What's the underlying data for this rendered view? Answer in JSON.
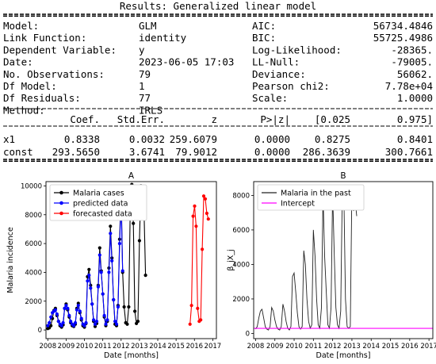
{
  "results": {
    "title": "Results: Generalized linear model",
    "left": [
      {
        "label": "Model:",
        "value": "GLM"
      },
      {
        "label": "Link Function:",
        "value": "identity"
      },
      {
        "label": "Dependent Variable:",
        "value": "y"
      },
      {
        "label": "Date:",
        "value": "2023-06-05 17:03"
      },
      {
        "label": "No. Observations:",
        "value": "79"
      },
      {
        "label": "Df Model:",
        "value": "1"
      },
      {
        "label": "Df Residuals:",
        "value": "77"
      },
      {
        "label": "Method:",
        "value": "IRLS"
      }
    ],
    "right": [
      {
        "label": "AIC:",
        "value": "56734.4846"
      },
      {
        "label": "BIC:",
        "value": "55725.4986"
      },
      {
        "label": "Log-Likelihood:",
        "value": "-28365."
      },
      {
        "label": "LL-Null:",
        "value": "-79005."
      },
      {
        "label": "Deviance:",
        "value": "56062."
      },
      {
        "label": "Pearson chi2:",
        "value": "7.78e+04"
      },
      {
        "label": "Scale:",
        "value": "1.0000"
      }
    ],
    "coef_headers": [
      "Coef.",
      "Std.Err.",
      "z",
      "P>|z|",
      "[0.025",
      "0.975]"
    ],
    "coef_rows": [
      {
        "name": "x1",
        "values": [
          "0.8338",
          "0.0032",
          "259.6079",
          "0.0000",
          "0.8275",
          "0.8401"
        ]
      },
      {
        "name": "const",
        "values": [
          "293.5650",
          "3.6741",
          "79.9012",
          "0.0000",
          "286.3639",
          "300.7661"
        ]
      }
    ]
  },
  "chart_data": [
    {
      "type": "line",
      "title": "A",
      "xlabel": "Date [months]",
      "ylabel": "Malaria incidence",
      "xlim": [
        2007.9,
        2017.2
      ],
      "ylim": [
        -600,
        10300
      ],
      "xticks": [
        "2008",
        "2009",
        "2010",
        "2011",
        "2012",
        "2013",
        "2014",
        "2015",
        "2016",
        "2017"
      ],
      "yticks": [
        "0",
        "2000",
        "4000",
        "6000",
        "8000",
        "10000"
      ],
      "legend_position": "top-left",
      "series": [
        {
          "name": "Malaria cases",
          "color": "#000000",
          "x_start": 2008.0,
          "values": [
            100,
            150,
            300,
            800,
            1350,
            1500,
            1000,
            600,
            300,
            200,
            350,
            1500,
            1800,
            1400,
            900,
            500,
            300,
            250,
            400,
            1500,
            1850,
            1200,
            700,
            300,
            200,
            450,
            3700,
            4200,
            3100,
            1800,
            600,
            250,
            450,
            3100,
            5700,
            4100,
            2500,
            900,
            300,
            600,
            4300,
            7200,
            5000,
            2100,
            400,
            300,
            1700,
            6300,
            9700,
            4000,
            1600,
            500,
            400,
            1600,
            8400,
            10100,
            7400,
            1300,
            450,
            600,
            6200,
            10000,
            9300,
            8200,
            3800
          ]
        },
        {
          "name": "predicted data",
          "color": "#0000ff",
          "x_start": 2008.0,
          "values": [
            300,
            500,
            900,
            1200,
            1300,
            1400,
            1100,
            600,
            400,
            300,
            500,
            1500,
            1700,
            1500,
            1000,
            600,
            400,
            300,
            500,
            1400,
            1700,
            1300,
            800,
            400,
            300,
            500,
            3400,
            3800,
            2900,
            1800,
            700,
            400,
            600,
            3000,
            5200,
            4000,
            2500,
            1000,
            400,
            700,
            4000,
            6700,
            4800,
            2100,
            600,
            400,
            1600,
            6000,
            8800,
            4100
          ]
        },
        {
          "name": "forecasted data",
          "color": "#ff0000",
          "x_start": 2015.76,
          "values": [
            400,
            1700,
            7900,
            8600,
            7200,
            1500,
            600,
            700,
            5600,
            9300,
            9100,
            8100,
            7700
          ]
        }
      ]
    },
    {
      "type": "line",
      "title": "B",
      "xlabel": "Date [months]",
      "ylabel": "β_jX_j",
      "xlim": [
        2007.9,
        2017.2
      ],
      "ylim": [
        -300,
        8800
      ],
      "xticks": [
        "2008",
        "2009",
        "2010",
        "2011",
        "2012",
        "2013",
        "2014",
        "2015",
        "2016",
        "2017"
      ],
      "yticks": [
        "0",
        "2000",
        "4000",
        "6000",
        "8000"
      ],
      "legend_position": "top-left",
      "series": [
        {
          "name": "Malaria in the past",
          "color": "#222222",
          "x_start": 2008.0,
          "values": [
            250,
            400,
            900,
            1300,
            1400,
            900,
            400,
            250,
            200,
            400,
            1500,
            1300,
            800,
            400,
            250,
            200,
            400,
            1700,
            1300,
            700,
            300,
            200,
            400,
            3300,
            3500,
            2400,
            1200,
            400,
            250,
            400,
            4800,
            4000,
            2000,
            700,
            300,
            500,
            6000,
            4500,
            2000,
            500,
            300,
            1500,
            8100,
            4500,
            2500,
            500,
            300,
            1500,
            8200,
            4500,
            1500,
            500,
            300,
            1300,
            8300,
            8000,
            2000,
            400,
            300,
            400,
            8400,
            7100,
            7700,
            6800
          ]
        },
        {
          "name": "Intercept",
          "color": "#ff00ff",
          "constant": 294
        }
      ]
    }
  ]
}
